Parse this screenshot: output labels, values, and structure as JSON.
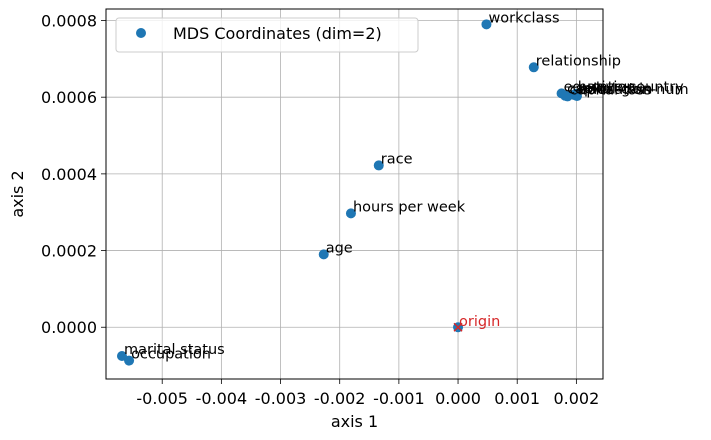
{
  "chart_data": {
    "type": "scatter",
    "xlabel": "axis 1",
    "ylabel": "axis 2",
    "xlim": [
      -0.00595,
      0.00245
    ],
    "ylim": [
      -0.000135,
      0.00083
    ],
    "xticks": [
      -0.005,
      -0.004,
      -0.003,
      -0.002,
      -0.001,
      0.0,
      0.001,
      0.002
    ],
    "xtick_labels": [
      "-0.005",
      "-0.004",
      "-0.003",
      "-0.002",
      "-0.001",
      "0.000",
      "0.001",
      "0.002"
    ],
    "yticks": [
      0.0,
      0.0002,
      0.0004,
      0.0006,
      0.0008
    ],
    "ytick_labels": [
      "0.0000",
      "0.0002",
      "0.0004",
      "0.0006",
      "0.0008"
    ],
    "grid": true,
    "legend": {
      "placement": "upper-left",
      "entries": [
        "MDS Coordinates (dim=2)"
      ]
    },
    "series": [
      {
        "name": "MDS Coordinates (dim=2)",
        "color": "#1f77b4",
        "points": [
          {
            "label": "workclass",
            "x": 0.00048,
            "y": 0.00079
          },
          {
            "label": "relationship",
            "x": 0.00128,
            "y": 0.000678
          },
          {
            "label": "education",
            "x": 0.00175,
            "y": 0.00061
          },
          {
            "label": "capital-gain",
            "x": 0.00181,
            "y": 0.000604
          },
          {
            "label": "capital-loss",
            "x": 0.00185,
            "y": 0.000602
          },
          {
            "label": "sex",
            "x": 0.00196,
            "y": 0.000606
          },
          {
            "label": "native-country",
            "x": 0.00199,
            "y": 0.000609
          },
          {
            "label": "education-num",
            "x": 0.00201,
            "y": 0.000603
          },
          {
            "label": "race",
            "x": -0.00134,
            "y": 0.000422
          },
          {
            "label": "hours per week",
            "x": -0.00181,
            "y": 0.000297
          },
          {
            "label": "age",
            "x": -0.00227,
            "y": 0.00019
          },
          {
            "label": "marital status",
            "x": -0.00568,
            "y": -7.5e-05
          },
          {
            "label": "occupation",
            "x": -0.00556,
            "y": -8.7e-05
          }
        ]
      }
    ],
    "origin": {
      "label": "origin",
      "x": 0.0,
      "y": 0.0,
      "color": "#d62728"
    }
  }
}
